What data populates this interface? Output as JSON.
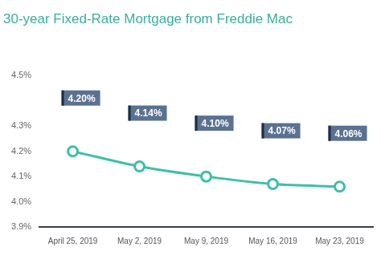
{
  "chart_data": {
    "type": "line",
    "title": "30-year Fixed-Rate Mortgage from Freddie Mac",
    "categories": [
      "April 25, 2019",
      "May 2, 2019",
      "May 9, 2019",
      "May 16, 2019",
      "May 23, 2019"
    ],
    "values": [
      4.2,
      4.14,
      4.1,
      4.07,
      4.06
    ],
    "value_labels": [
      "4.20%",
      "4.14%",
      "4.10%",
      "4.07%",
      "4.06%"
    ],
    "color": "#3dbfa9",
    "marker": "circle",
    "ylim": [
      3.9,
      4.5
    ],
    "yticks": [
      {
        "value": 3.9,
        "label": "3.9%"
      },
      {
        "value": 4.0,
        "label": "4.0%"
      },
      {
        "value": 4.1,
        "label": "4.1%"
      },
      {
        "value": 4.2,
        "label": "4.2%"
      },
      {
        "value": 4.3,
        "label": "4.3%"
      },
      {
        "value": 4.5,
        "label": "4.5%"
      }
    ],
    "grid": false,
    "data_labels": true
  }
}
